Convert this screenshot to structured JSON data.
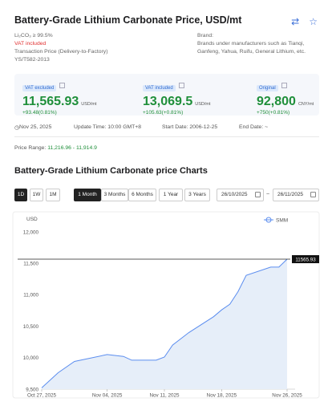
{
  "header": {
    "title": "Battery-Grade Lithium Carbonate Price, USD/mt",
    "swap_icon": "⇄",
    "star_icon": "☆"
  },
  "specs": {
    "purity": "Li₂CO₃ ≥ 99.5%",
    "vat": "VAT included",
    "terms": "Transaction Price (Delivery-to-Factory)",
    "standard": "YS/T582-2013"
  },
  "brands": {
    "label": "Brand:",
    "text": "Brands under manufacturers such as Tianqi, Ganfeng, Yahua, Ruifu, General Lithium, etc."
  },
  "prices": [
    {
      "tag": "VAT excluded",
      "value": "11,565.93",
      "unit": "USD/mt",
      "change": "+93.48(0.81%)"
    },
    {
      "tag": "VAT included",
      "value": "13,069.5",
      "unit": "USD/mt",
      "change": "+105.63(+0.81%)"
    },
    {
      "tag": "Original",
      "value": "92,800",
      "unit": "CNY/mt",
      "change": "+750(+0.81%)"
    }
  ],
  "meta": {
    "date": "Nov 25, 2025",
    "update": "Update Time: 10:00 GMT+8",
    "start": "Start Date: 2006-12-25",
    "end": "End Date: ~"
  },
  "range": {
    "label": "Price Range:",
    "value": "11,216.96 - 11,914.9"
  },
  "chart_title": "Battery-Grade Lithium Carbonate price Charts",
  "controls": {
    "intervals": [
      "1D",
      "1W",
      "1M"
    ],
    "periods": [
      "1 Month",
      "3 Months",
      "6 Months",
      "1 Year",
      "3 Years"
    ],
    "date_from": "26/10/2025",
    "date_to": "26/11/2025",
    "tilde": "~"
  },
  "colors": {
    "line": "#5b8def",
    "area": "#e6eef9",
    "positive": "#1f8f3a",
    "accent": "#2f6ad0"
  },
  "chart_data": {
    "type": "area",
    "ylabel": "USD",
    "series": [
      {
        "name": "SMM",
        "points": [
          [
            "2025-10-27",
            9520
          ],
          [
            "2025-10-29",
            9760
          ],
          [
            "2025-10-31",
            9940
          ],
          [
            "2025-11-04",
            10050
          ],
          [
            "2025-11-06",
            10020
          ],
          [
            "2025-11-07",
            9960
          ],
          [
            "2025-11-10",
            9960
          ],
          [
            "2025-11-11",
            10010
          ],
          [
            "2025-11-12",
            10200
          ],
          [
            "2025-11-14",
            10400
          ],
          [
            "2025-11-17",
            10650
          ],
          [
            "2025-11-18",
            10760
          ],
          [
            "2025-11-19",
            10850
          ],
          [
            "2025-11-20",
            11050
          ],
          [
            "2025-11-21",
            11310
          ],
          [
            "2025-11-24",
            11440
          ],
          [
            "2025-11-25",
            11440
          ],
          [
            "2025-11-26",
            11565.93
          ]
        ]
      }
    ],
    "y_ticks": [
      "12,000",
      "11,500",
      "11,000",
      "10,500",
      "10,000",
      "9,500"
    ],
    "ylim": [
      9500,
      12000
    ],
    "x_ticks": [
      "Oct 27, 2025",
      "Nov 04, 2025",
      "Nov 11, 2025",
      "Nov 18, 2025",
      "Nov 26, 2025"
    ],
    "xlim": [
      "2025-10-27",
      "2025-11-26"
    ],
    "reference_line": {
      "value": 11565.93,
      "label": "11565.93"
    },
    "legend": "top-right",
    "grid": false
  }
}
